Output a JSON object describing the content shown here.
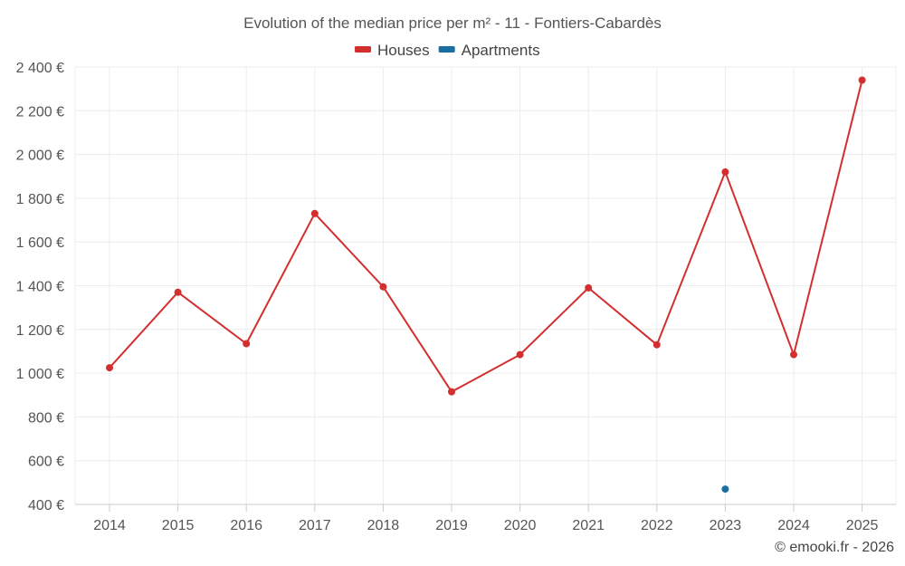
{
  "chart_data": {
    "type": "line",
    "title": "Evolution of the median price per m² - 11 - Fontiers-Cabardès",
    "categories": [
      "2014",
      "2015",
      "2016",
      "2017",
      "2018",
      "2019",
      "2020",
      "2021",
      "2022",
      "2023",
      "2024",
      "2025"
    ],
    "series": [
      {
        "name": "Houses",
        "color": "#d32f2f",
        "values": [
          1025,
          1370,
          1135,
          1730,
          1395,
          915,
          1085,
          1390,
          1130,
          1920,
          1085,
          2340
        ]
      },
      {
        "name": "Apartments",
        "color": "#1a6fa0",
        "values": [
          null,
          null,
          null,
          null,
          null,
          null,
          null,
          null,
          null,
          470,
          null,
          null
        ]
      }
    ],
    "ylim": [
      400,
      2400
    ],
    "yticks": [
      400,
      600,
      800,
      1000,
      1200,
      1400,
      1600,
      1800,
      2000,
      2200,
      2400
    ],
    "ytick_labels": [
      "400 €",
      "600 €",
      "800 €",
      "1 000 €",
      "1 200 €",
      "1 400 €",
      "1 600 €",
      "1 800 €",
      "2 000 €",
      "2 200 €",
      "2 400 €"
    ],
    "xlabel": "",
    "ylabel": "",
    "grid": true,
    "legend_position": "top-center"
  },
  "credit": "© emooki.fr - 2026"
}
